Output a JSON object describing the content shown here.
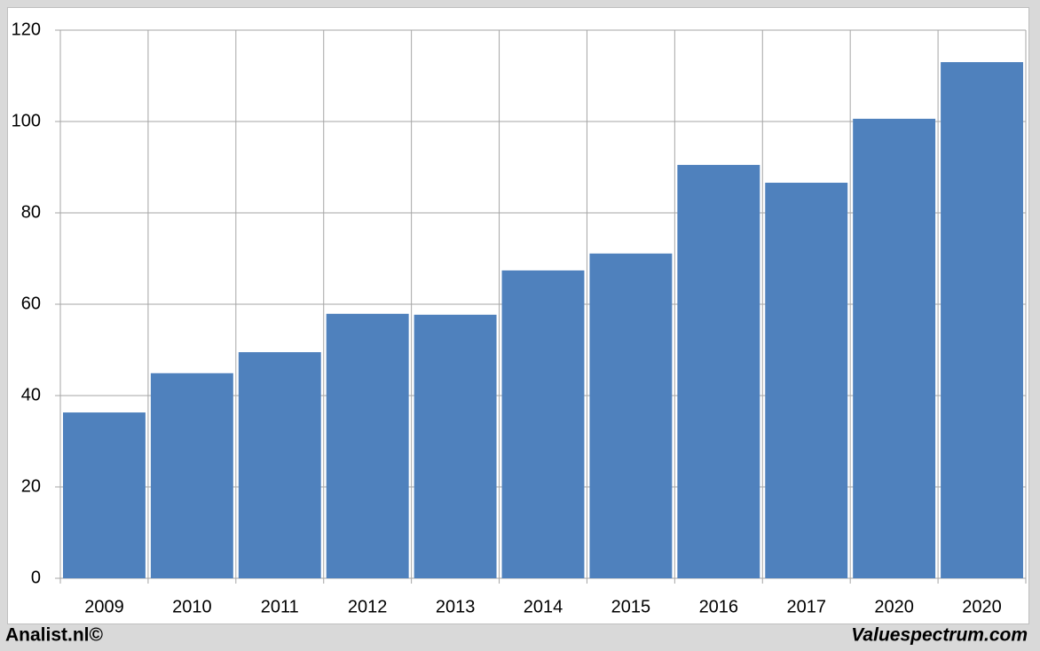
{
  "chart_data": {
    "type": "bar",
    "categories": [
      "2009",
      "2010",
      "2011",
      "2012",
      "2013",
      "2014",
      "2015",
      "2016",
      "2017",
      "2020",
      "2020"
    ],
    "values": [
      36.3,
      44.9,
      49.5,
      57.9,
      57.7,
      67.4,
      71.1,
      90.5,
      86.6,
      100.6,
      113.0
    ],
    "color": "#4f81bd",
    "ylim": [
      0,
      120
    ],
    "yticks": [
      0,
      20,
      40,
      60,
      80,
      100,
      120
    ],
    "grid": true
  },
  "footer": {
    "left": "Analist.nl©",
    "right": "Valuespectrum.com"
  }
}
